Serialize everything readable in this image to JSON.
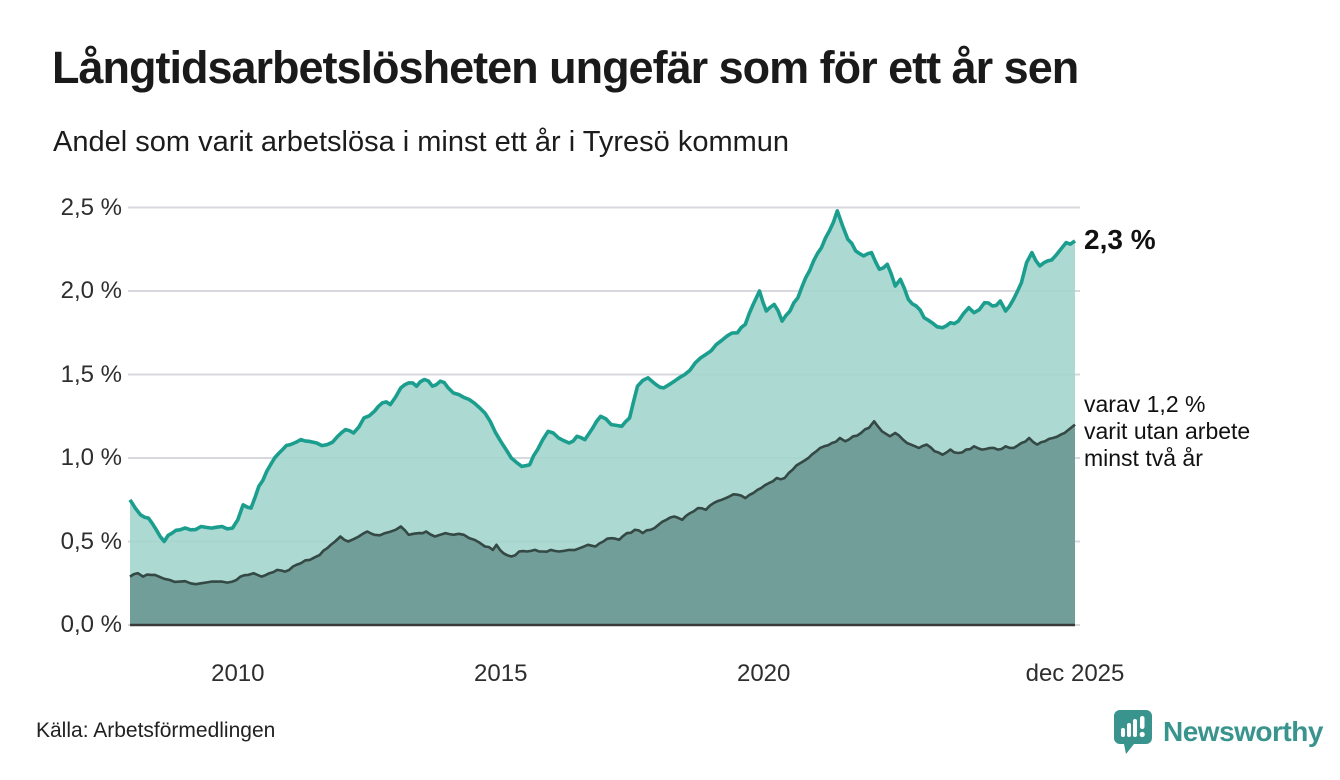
{
  "title": "Långtidsarbetslösheten ungefär som för ett år sen",
  "subtitle": "Andel som varit arbetslösa i minst ett år i Tyresö kommun",
  "source": "Källa: Arbetsförmedlingen",
  "branding": {
    "name": "Newsworthy",
    "color": "#38948c",
    "icon": "speech-bubble-bar-chart"
  },
  "chart_data": {
    "type": "area",
    "title": "Långtidsarbetslösheten ungefär som för ett år sen",
    "subtitle": "Andel som varit arbetslösa i minst ett år i Tyresö kommun",
    "unit": "%",
    "grid": true,
    "legend_position": "none",
    "x_domain": [
      2007.95,
      2025.92
    ],
    "y_domain": [
      0,
      2.5
    ],
    "y_ticks": [
      {
        "value": 0.0,
        "label": "0,0 %"
      },
      {
        "value": 0.5,
        "label": "0,5 %"
      },
      {
        "value": 1.0,
        "label": "1,0 %"
      },
      {
        "value": 1.5,
        "label": "1,5 %"
      },
      {
        "value": 2.0,
        "label": "2,0 %"
      },
      {
        "value": 2.5,
        "label": "2,5 %"
      }
    ],
    "x_ticks": [
      {
        "value": 2010,
        "label": "2010"
      },
      {
        "value": 2015,
        "label": "2015"
      },
      {
        "value": 2020,
        "label": "2020"
      },
      {
        "value": 2025.92,
        "label": "dec 2025"
      }
    ],
    "colors": {
      "line_total": "#1b9e8e",
      "fill_total": "#a2d4cd",
      "line_two_years": "#344844",
      "fill_two_years": "#6f9b96",
      "gridline": "#d8d9de",
      "axis": "#3a3a3a"
    },
    "series": [
      {
        "name": "arbetslösa minst ett år",
        "latest_value": "2,3 %",
        "points": [
          [
            2007.95,
            0.75
          ],
          [
            2008.05,
            0.7
          ],
          [
            2008.15,
            0.66
          ],
          [
            2008.3,
            0.64
          ],
          [
            2008.45,
            0.57
          ],
          [
            2008.6,
            0.5
          ],
          [
            2008.75,
            0.55
          ],
          [
            2008.9,
            0.57
          ],
          [
            2009.1,
            0.57
          ],
          [
            2009.3,
            0.59
          ],
          [
            2009.5,
            0.58
          ],
          [
            2009.7,
            0.59
          ],
          [
            2009.9,
            0.58
          ],
          [
            2010.0,
            0.63
          ],
          [
            2010.1,
            0.72
          ],
          [
            2010.25,
            0.7
          ],
          [
            2010.4,
            0.83
          ],
          [
            2010.55,
            0.92
          ],
          [
            2010.7,
            1.0
          ],
          [
            2010.85,
            1.05
          ],
          [
            2011.0,
            1.08
          ],
          [
            2011.2,
            1.11
          ],
          [
            2011.35,
            1.1
          ],
          [
            2011.5,
            1.09
          ],
          [
            2011.7,
            1.08
          ],
          [
            2011.9,
            1.13
          ],
          [
            2012.05,
            1.17
          ],
          [
            2012.2,
            1.15
          ],
          [
            2012.4,
            1.24
          ],
          [
            2012.6,
            1.28
          ],
          [
            2012.75,
            1.33
          ],
          [
            2012.9,
            1.32
          ],
          [
            2013.1,
            1.42
          ],
          [
            2013.25,
            1.45
          ],
          [
            2013.4,
            1.43
          ],
          [
            2013.55,
            1.47
          ],
          [
            2013.7,
            1.43
          ],
          [
            2013.85,
            1.46
          ],
          [
            2014.0,
            1.42
          ],
          [
            2014.2,
            1.38
          ],
          [
            2014.4,
            1.35
          ],
          [
            2014.6,
            1.3
          ],
          [
            2014.8,
            1.22
          ],
          [
            2015.0,
            1.1
          ],
          [
            2015.2,
            1.0
          ],
          [
            2015.4,
            0.95
          ],
          [
            2015.55,
            0.96
          ],
          [
            2015.7,
            1.05
          ],
          [
            2015.9,
            1.16
          ],
          [
            2016.1,
            1.12
          ],
          [
            2016.3,
            1.09
          ],
          [
            2016.45,
            1.13
          ],
          [
            2016.6,
            1.11
          ],
          [
            2016.75,
            1.18
          ],
          [
            2016.9,
            1.25
          ],
          [
            2017.1,
            1.2
          ],
          [
            2017.3,
            1.19
          ],
          [
            2017.45,
            1.24
          ],
          [
            2017.6,
            1.43
          ],
          [
            2017.8,
            1.48
          ],
          [
            2017.95,
            1.44
          ],
          [
            2018.1,
            1.42
          ],
          [
            2018.3,
            1.46
          ],
          [
            2018.5,
            1.5
          ],
          [
            2018.7,
            1.57
          ],
          [
            2018.9,
            1.62
          ],
          [
            2019.1,
            1.68
          ],
          [
            2019.3,
            1.73
          ],
          [
            2019.5,
            1.75
          ],
          [
            2019.65,
            1.8
          ],
          [
            2019.8,
            1.92
          ],
          [
            2019.92,
            2.0
          ],
          [
            2020.05,
            1.88
          ],
          [
            2020.2,
            1.92
          ],
          [
            2020.35,
            1.82
          ],
          [
            2020.5,
            1.88
          ],
          [
            2020.65,
            1.96
          ],
          [
            2020.8,
            2.08
          ],
          [
            2020.95,
            2.18
          ],
          [
            2021.1,
            2.26
          ],
          [
            2021.25,
            2.36
          ],
          [
            2021.4,
            2.48
          ],
          [
            2021.5,
            2.39
          ],
          [
            2021.6,
            2.31
          ],
          [
            2021.75,
            2.24
          ],
          [
            2021.9,
            2.21
          ],
          [
            2022.05,
            2.23
          ],
          [
            2022.2,
            2.13
          ],
          [
            2022.35,
            2.16
          ],
          [
            2022.5,
            2.03
          ],
          [
            2022.6,
            2.07
          ],
          [
            2022.75,
            1.95
          ],
          [
            2022.9,
            1.91
          ],
          [
            2023.05,
            1.84
          ],
          [
            2023.2,
            1.81
          ],
          [
            2023.4,
            1.78
          ],
          [
            2023.55,
            1.81
          ],
          [
            2023.7,
            1.82
          ],
          [
            2023.9,
            1.9
          ],
          [
            2024.0,
            1.87
          ],
          [
            2024.2,
            1.93
          ],
          [
            2024.35,
            1.91
          ],
          [
            2024.5,
            1.94
          ],
          [
            2024.6,
            1.88
          ],
          [
            2024.75,
            1.95
          ],
          [
            2024.9,
            2.05
          ],
          [
            2025.0,
            2.17
          ],
          [
            2025.1,
            2.23
          ],
          [
            2025.25,
            2.15
          ],
          [
            2025.4,
            2.18
          ],
          [
            2025.55,
            2.21
          ],
          [
            2025.65,
            2.25
          ],
          [
            2025.75,
            2.29
          ],
          [
            2025.83,
            2.28
          ],
          [
            2025.92,
            2.3
          ]
        ]
      },
      {
        "name": "varav arbetslösa minst två år",
        "latest_value": "1,2 %",
        "points": [
          [
            2007.95,
            0.29
          ],
          [
            2008.1,
            0.31
          ],
          [
            2008.2,
            0.29
          ],
          [
            2008.35,
            0.3
          ],
          [
            2008.5,
            0.29
          ],
          [
            2008.7,
            0.27
          ],
          [
            2008.9,
            0.26
          ],
          [
            2009.1,
            0.25
          ],
          [
            2009.3,
            0.25
          ],
          [
            2009.5,
            0.26
          ],
          [
            2009.7,
            0.26
          ],
          [
            2009.9,
            0.26
          ],
          [
            2010.05,
            0.29
          ],
          [
            2010.2,
            0.3
          ],
          [
            2010.3,
            0.31
          ],
          [
            2010.45,
            0.29
          ],
          [
            2010.6,
            0.31
          ],
          [
            2010.75,
            0.33
          ],
          [
            2010.9,
            0.32
          ],
          [
            2011.05,
            0.35
          ],
          [
            2011.2,
            0.37
          ],
          [
            2011.37,
            0.39
          ],
          [
            2011.56,
            0.42
          ],
          [
            2011.7,
            0.46
          ],
          [
            2011.85,
            0.5
          ],
          [
            2011.95,
            0.53
          ],
          [
            2012.1,
            0.5
          ],
          [
            2012.3,
            0.53
          ],
          [
            2012.46,
            0.56
          ],
          [
            2012.6,
            0.54
          ],
          [
            2012.8,
            0.55
          ],
          [
            2013.0,
            0.57
          ],
          [
            2013.1,
            0.59
          ],
          [
            2013.25,
            0.54
          ],
          [
            2013.45,
            0.55
          ],
          [
            2013.58,
            0.56
          ],
          [
            2013.75,
            0.53
          ],
          [
            2013.95,
            0.55
          ],
          [
            2014.1,
            0.54
          ],
          [
            2014.3,
            0.54
          ],
          [
            2014.5,
            0.51
          ],
          [
            2014.7,
            0.47
          ],
          [
            2014.85,
            0.45
          ],
          [
            2014.92,
            0.48
          ],
          [
            2015.05,
            0.43
          ],
          [
            2015.2,
            0.41
          ],
          [
            2015.35,
            0.44
          ],
          [
            2015.5,
            0.44
          ],
          [
            2015.65,
            0.45
          ],
          [
            2015.8,
            0.44
          ],
          [
            2015.95,
            0.45
          ],
          [
            2016.1,
            0.44
          ],
          [
            2016.3,
            0.45
          ],
          [
            2016.5,
            0.46
          ],
          [
            2016.66,
            0.48
          ],
          [
            2016.8,
            0.47
          ],
          [
            2016.95,
            0.5
          ],
          [
            2017.1,
            0.52
          ],
          [
            2017.25,
            0.51
          ],
          [
            2017.4,
            0.55
          ],
          [
            2017.55,
            0.57
          ],
          [
            2017.7,
            0.55
          ],
          [
            2017.85,
            0.57
          ],
          [
            2018.0,
            0.6
          ],
          [
            2018.15,
            0.63
          ],
          [
            2018.3,
            0.65
          ],
          [
            2018.45,
            0.63
          ],
          [
            2018.6,
            0.67
          ],
          [
            2018.75,
            0.7
          ],
          [
            2018.9,
            0.69
          ],
          [
            2019.05,
            0.73
          ],
          [
            2019.2,
            0.75
          ],
          [
            2019.35,
            0.77
          ],
          [
            2019.5,
            0.78
          ],
          [
            2019.65,
            0.76
          ],
          [
            2019.8,
            0.79
          ],
          [
            2019.95,
            0.82
          ],
          [
            2020.1,
            0.85
          ],
          [
            2020.25,
            0.88
          ],
          [
            2020.4,
            0.88
          ],
          [
            2020.55,
            0.93
          ],
          [
            2020.7,
            0.97
          ],
          [
            2020.85,
            1.0
          ],
          [
            2021.0,
            1.04
          ],
          [
            2021.15,
            1.07
          ],
          [
            2021.3,
            1.09
          ],
          [
            2021.45,
            1.12
          ],
          [
            2021.55,
            1.1
          ],
          [
            2021.7,
            1.13
          ],
          [
            2021.85,
            1.15
          ],
          [
            2022.0,
            1.18
          ],
          [
            2022.1,
            1.22
          ],
          [
            2022.25,
            1.16
          ],
          [
            2022.4,
            1.13
          ],
          [
            2022.5,
            1.15
          ],
          [
            2022.65,
            1.11
          ],
          [
            2022.8,
            1.08
          ],
          [
            2022.95,
            1.06
          ],
          [
            2023.1,
            1.08
          ],
          [
            2023.25,
            1.04
          ],
          [
            2023.4,
            1.02
          ],
          [
            2023.55,
            1.05
          ],
          [
            2023.7,
            1.03
          ],
          [
            2023.85,
            1.05
          ],
          [
            2024.0,
            1.07
          ],
          [
            2024.15,
            1.05
          ],
          [
            2024.3,
            1.06
          ],
          [
            2024.45,
            1.05
          ],
          [
            2024.6,
            1.07
          ],
          [
            2024.75,
            1.06
          ],
          [
            2024.9,
            1.09
          ],
          [
            2025.05,
            1.12
          ],
          [
            2025.2,
            1.08
          ],
          [
            2025.35,
            1.1
          ],
          [
            2025.5,
            1.12
          ],
          [
            2025.65,
            1.14
          ],
          [
            2025.8,
            1.17
          ],
          [
            2025.92,
            1.2
          ]
        ]
      }
    ],
    "annotations": [
      {
        "text": "2,3 %",
        "bold": true,
        "x": 2025.92,
        "y": 2.3
      },
      {
        "text": "varav 1,2 %\nvarit utan arbete\nminst två år",
        "bold": false,
        "x": 2025.92,
        "y": 1.2
      }
    ]
  }
}
